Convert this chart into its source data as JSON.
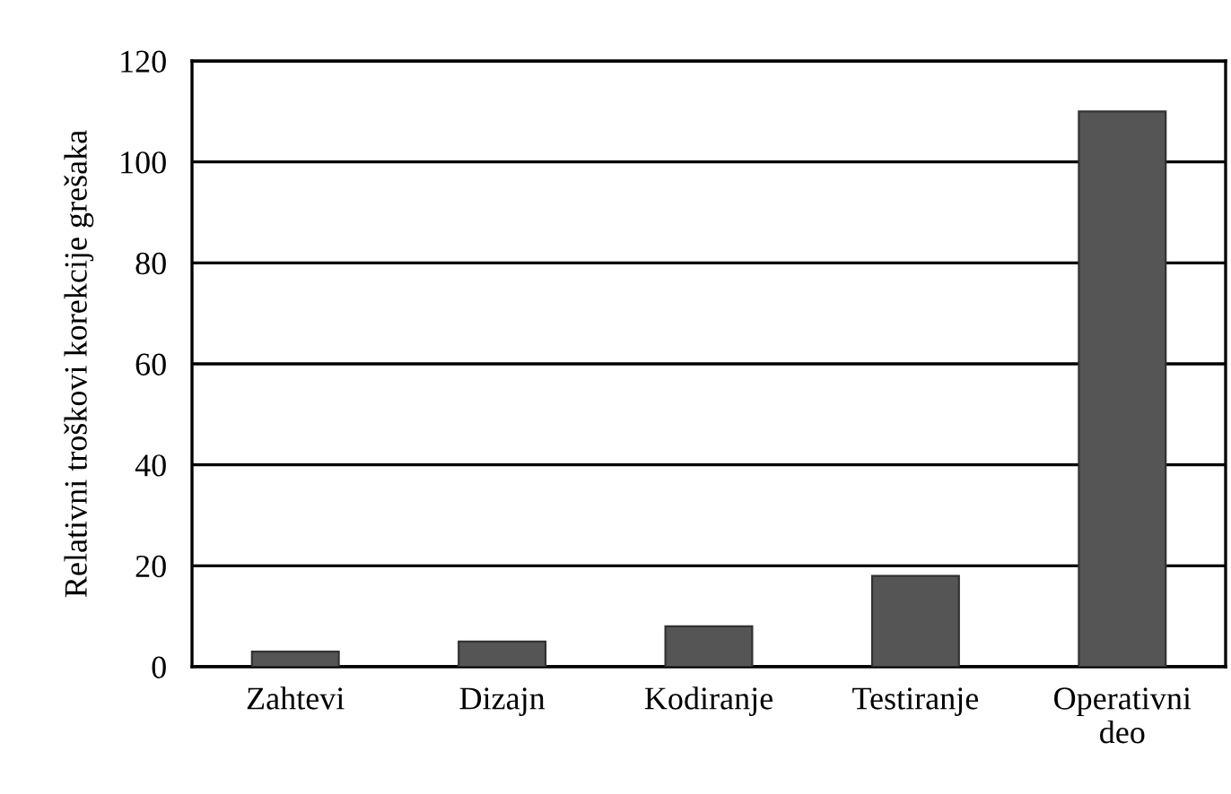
{
  "chart_data": {
    "type": "bar",
    "ylabel": "Relativni troškovi korekcije grešaka",
    "categories": [
      "Zahtevi",
      "Dizajn",
      "Kodiranje",
      "Testiranje",
      "Operativni\ndeo"
    ],
    "values": [
      3,
      5,
      8,
      18,
      110
    ],
    "color": "#555555",
    "ylim": [
      0,
      120
    ],
    "yticks": [
      0,
      20,
      40,
      60,
      80,
      100,
      120
    ],
    "grid": "y"
  }
}
